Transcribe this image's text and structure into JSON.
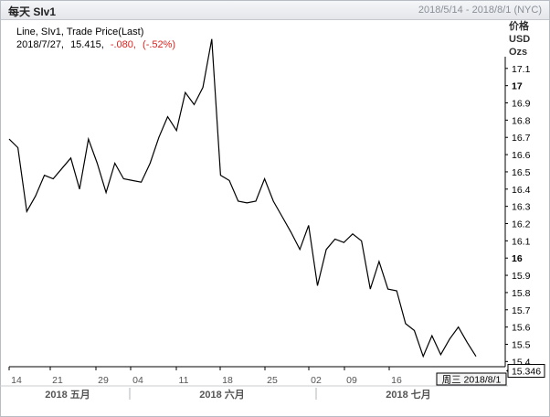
{
  "window": {
    "title": "每天 SIv1",
    "date_range": "2018/5/14 - 2018/8/1 (NYC)"
  },
  "legend": {
    "line1": "Line, SIv1, Trade Price(Last)",
    "date": "2018/7/27,",
    "price": "15.415,",
    "change": "-.080,",
    "change_pct": "(-.52%)",
    "change_color": "#e0211d"
  },
  "y_axis_header": [
    "价格",
    "USD",
    "Ozs"
  ],
  "last_price_label": "15.346",
  "crosshair_label": "周三 2018/8/1",
  "chart_data": {
    "type": "line",
    "title": "",
    "series": [
      {
        "values": [
          16.69,
          16.64,
          16.27,
          16.36,
          16.48,
          16.46,
          16.52,
          16.58,
          16.4,
          16.69,
          16.55,
          16.38,
          16.55,
          16.46,
          16.45,
          16.44,
          16.55,
          16.7,
          16.82,
          16.74,
          16.96,
          16.89,
          16.99,
          17.27,
          16.48,
          16.45,
          16.33,
          16.32,
          16.33,
          16.46,
          16.33,
          16.24,
          16.15,
          16.05,
          16.19,
          15.84,
          16.05,
          16.11,
          16.09,
          16.14,
          16.1,
          15.82,
          15.98,
          15.82,
          15.81,
          15.62,
          15.58,
          15.43,
          15.55,
          15.44,
          15.53,
          15.6,
          15.51,
          15.43
        ]
      }
    ],
    "y_ticks": [
      "17.1",
      "17",
      "16.9",
      "16.8",
      "16.7",
      "16.6",
      "16.5",
      "16.4",
      "16.3",
      "16.2",
      "16.1",
      "16",
      "15.9",
      "15.8",
      "15.7",
      "15.6",
      "15.5",
      "15.4"
    ],
    "ylim": [
      15.37,
      17.38
    ],
    "x_day_ticks": [
      "14",
      "21",
      "29",
      "04",
      "11",
      "18",
      "25",
      "02",
      "09",
      "16"
    ],
    "x_month_labels": [
      "2018 五月",
      "2018 六月",
      "2018 七月"
    ],
    "line_color": "#000000",
    "grid": false
  }
}
